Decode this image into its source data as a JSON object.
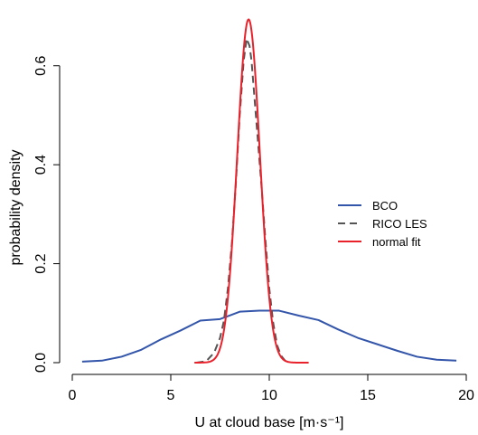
{
  "chart_data": {
    "type": "line",
    "xlabel": "U at cloud base [m·s⁻¹]",
    "ylabel": "probability density",
    "xlim": [
      0,
      20
    ],
    "ylim": [
      0,
      0.7
    ],
    "x_ticks": [
      0,
      5,
      10,
      15,
      20
    ],
    "y_ticks": [
      0.0,
      0.2,
      0.4,
      0.6
    ],
    "x_tick_labels": [
      "0",
      "5",
      "10",
      "15",
      "20"
    ],
    "y_tick_labels": [
      "0.0",
      "0.2",
      "0.4",
      "0.6"
    ],
    "grid": false,
    "legend_position": "right",
    "series": [
      {
        "name": "BCO",
        "color": "#3355aa",
        "dash": "solid",
        "x": [
          0.5,
          1.5,
          2.5,
          3.5,
          4.5,
          5.5,
          6.5,
          7.5,
          8.5,
          9.5,
          10.5,
          11.5,
          12.5,
          13.5,
          14.5,
          15.5,
          16.5,
          17.5,
          18.5,
          19.5
        ],
        "y": [
          0.002,
          0.004,
          0.012,
          0.026,
          0.047,
          0.065,
          0.085,
          0.088,
          0.103,
          0.105,
          0.105,
          0.095,
          0.086,
          0.067,
          0.05,
          0.037,
          0.024,
          0.012,
          0.006,
          0.004
        ]
      },
      {
        "name": "RICO LES",
        "color": "#555555",
        "dash": "dashed",
        "x": [
          6.3,
          6.8,
          7.2,
          7.5,
          7.7,
          7.9,
          8.1,
          8.3,
          8.5,
          8.7,
          8.85,
          9.0,
          9.1,
          9.2,
          9.4,
          9.6,
          9.8,
          10.0,
          10.2,
          10.4,
          10.6,
          10.8,
          11.0
        ],
        "y": [
          0.0,
          0.003,
          0.02,
          0.05,
          0.085,
          0.15,
          0.24,
          0.36,
          0.5,
          0.61,
          0.655,
          0.64,
          0.61,
          0.56,
          0.46,
          0.36,
          0.25,
          0.15,
          0.08,
          0.035,
          0.014,
          0.004,
          0.0
        ]
      },
      {
        "name": "normal fit",
        "color": "#e8212b",
        "dash": "solid",
        "mean": 8.95,
        "sd": 0.575,
        "x_range": [
          6.2,
          12.0
        ]
      }
    ]
  }
}
